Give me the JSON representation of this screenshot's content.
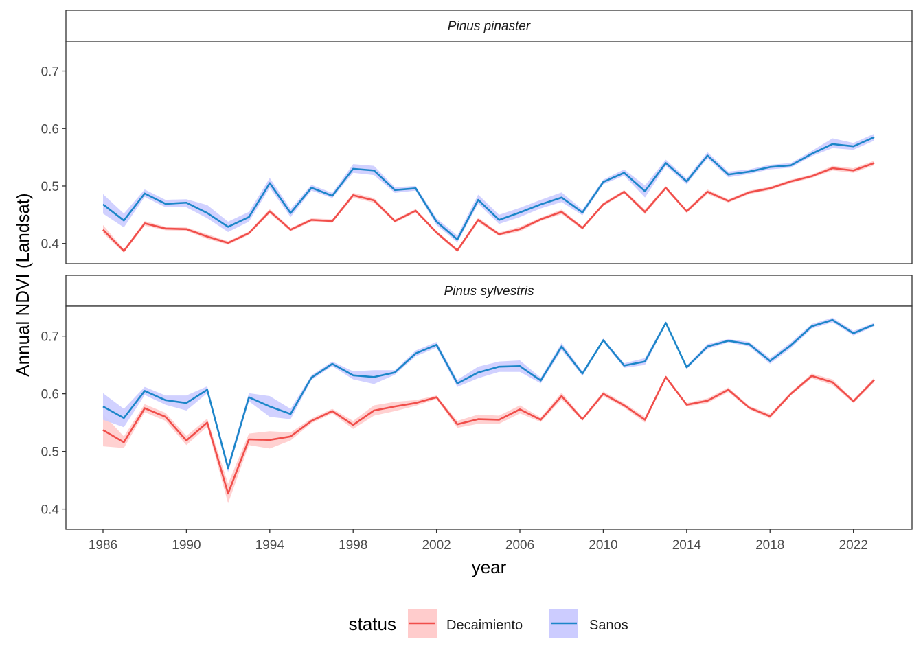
{
  "chart_data": {
    "type": "line",
    "facets": [
      "Pinus pinaster",
      "Pinus sylvestris"
    ],
    "x": [
      1986,
      1987,
      1988,
      1989,
      1990,
      1991,
      1992,
      1993,
      1994,
      1995,
      1996,
      1997,
      1998,
      1999,
      2000,
      2001,
      2002,
      2003,
      2004,
      2005,
      2006,
      2007,
      2008,
      2009,
      2010,
      2011,
      2012,
      2013,
      2014,
      2015,
      2016,
      2017,
      2018,
      2019,
      2020,
      2021,
      2022,
      2023
    ],
    "x_ticks": [
      "1986",
      "1990",
      "1994",
      "1998",
      "2002",
      "2006",
      "2010",
      "2014",
      "2018",
      "2022"
    ],
    "xlabel": "year",
    "ylabel": "Annual NDVI (Landsat)",
    "y_ticks": [
      "0.4",
      "0.5",
      "0.6",
      "0.7"
    ],
    "ylim": [
      [
        0.365,
        0.752
      ],
      [
        0.365,
        0.752
      ]
    ],
    "legend": {
      "title": "status",
      "position": "bottom",
      "items": [
        {
          "label": "Decaimiento",
          "line": "#F04E4A",
          "fill": "#FFCCCC"
        },
        {
          "label": "Sanos",
          "line": "#1C86C8",
          "fill": "#CCCCFF"
        }
      ]
    },
    "panels": [
      {
        "series": [
          {
            "name": "Decaimiento",
            "values": [
              0.424,
              0.387,
              0.435,
              0.426,
              0.425,
              0.412,
              0.401,
              0.418,
              0.456,
              0.424,
              0.441,
              0.439,
              0.484,
              0.475,
              0.439,
              0.457,
              0.419,
              0.388,
              0.441,
              0.416,
              0.425,
              0.442,
              0.455,
              0.427,
              0.468,
              0.49,
              0.455,
              0.497,
              0.456,
              0.49,
              0.474,
              0.489,
              0.496,
              0.508,
              0.517,
              0.531,
              0.527,
              0.54
            ],
            "lower": [
              0.418,
              0.384,
              0.431,
              0.423,
              0.422,
              0.408,
              0.398,
              0.415,
              0.452,
              0.421,
              0.438,
              0.436,
              0.48,
              0.471,
              0.436,
              0.454,
              0.416,
              0.385,
              0.437,
              0.413,
              0.421,
              0.439,
              0.451,
              0.424,
              0.465,
              0.487,
              0.451,
              0.494,
              0.453,
              0.486,
              0.471,
              0.486,
              0.493,
              0.505,
              0.514,
              0.527,
              0.523,
              0.536
            ],
            "upper": [
              0.432,
              0.39,
              0.439,
              0.429,
              0.428,
              0.416,
              0.404,
              0.421,
              0.46,
              0.427,
              0.444,
              0.442,
              0.488,
              0.479,
              0.442,
              0.46,
              0.422,
              0.391,
              0.445,
              0.419,
              0.429,
              0.445,
              0.459,
              0.43,
              0.471,
              0.493,
              0.459,
              0.5,
              0.459,
              0.494,
              0.477,
              0.492,
              0.499,
              0.511,
              0.52,
              0.535,
              0.531,
              0.544
            ]
          },
          {
            "name": "Sanos",
            "values": [
              0.468,
              0.44,
              0.487,
              0.469,
              0.471,
              0.453,
              0.429,
              0.446,
              0.505,
              0.453,
              0.497,
              0.483,
              0.53,
              0.527,
              0.493,
              0.496,
              0.438,
              0.407,
              0.476,
              0.441,
              0.454,
              0.468,
              0.48,
              0.454,
              0.507,
              0.523,
              0.491,
              0.54,
              0.508,
              0.553,
              0.52,
              0.525,
              0.533,
              0.536,
              0.556,
              0.573,
              0.569,
              0.585
            ],
            "lower": [
              0.452,
              0.428,
              0.481,
              0.463,
              0.463,
              0.444,
              0.42,
              0.438,
              0.497,
              0.446,
              0.492,
              0.479,
              0.523,
              0.519,
              0.488,
              0.492,
              0.432,
              0.402,
              0.469,
              0.434,
              0.446,
              0.461,
              0.472,
              0.449,
              0.503,
              0.518,
              0.48,
              0.535,
              0.503,
              0.548,
              0.515,
              0.521,
              0.529,
              0.532,
              0.552,
              0.566,
              0.563,
              0.579
            ],
            "upper": [
              0.486,
              0.452,
              0.494,
              0.476,
              0.477,
              0.467,
              0.438,
              0.455,
              0.514,
              0.46,
              0.502,
              0.488,
              0.538,
              0.535,
              0.498,
              0.5,
              0.444,
              0.414,
              0.485,
              0.45,
              0.462,
              0.476,
              0.489,
              0.459,
              0.511,
              0.529,
              0.501,
              0.546,
              0.513,
              0.559,
              0.525,
              0.529,
              0.537,
              0.54,
              0.561,
              0.583,
              0.575,
              0.591
            ]
          }
        ]
      },
      {
        "series": [
          {
            "name": "Decaimiento",
            "values": [
              0.537,
              0.516,
              0.575,
              0.56,
              0.519,
              0.55,
              0.427,
              0.521,
              0.52,
              0.526,
              0.553,
              0.57,
              0.546,
              0.571,
              0.578,
              0.584,
              0.594,
              0.547,
              0.556,
              0.555,
              0.573,
              0.555,
              0.596,
              0.556,
              0.6,
              0.58,
              0.555,
              0.629,
              0.581,
              0.588,
              0.607,
              0.576,
              0.561,
              0.6,
              0.631,
              0.62,
              0.587,
              0.624
            ],
            "lower": [
              0.509,
              0.506,
              0.568,
              0.553,
              0.511,
              0.543,
              0.41,
              0.511,
              0.505,
              0.519,
              0.549,
              0.566,
              0.539,
              0.562,
              0.57,
              0.579,
              0.591,
              0.541,
              0.548,
              0.548,
              0.566,
              0.551,
              0.59,
              0.553,
              0.596,
              0.576,
              0.55,
              0.626,
              0.578,
              0.584,
              0.603,
              0.573,
              0.557,
              0.597,
              0.627,
              0.615,
              0.584,
              0.62
            ],
            "upper": [
              0.565,
              0.526,
              0.582,
              0.567,
              0.527,
              0.557,
              0.444,
              0.531,
              0.535,
              0.533,
              0.557,
              0.574,
              0.553,
              0.58,
              0.586,
              0.589,
              0.597,
              0.553,
              0.564,
              0.562,
              0.58,
              0.559,
              0.602,
              0.559,
              0.604,
              0.584,
              0.56,
              0.632,
              0.584,
              0.592,
              0.611,
              0.579,
              0.565,
              0.603,
              0.635,
              0.625,
              0.59,
              0.628
            ]
          },
          {
            "name": "Sanos",
            "values": [
              0.578,
              0.558,
              0.605,
              0.589,
              0.584,
              0.607,
              0.471,
              0.594,
              0.578,
              0.565,
              0.628,
              0.652,
              0.632,
              0.629,
              0.637,
              0.67,
              0.685,
              0.618,
              0.637,
              0.647,
              0.648,
              0.623,
              0.682,
              0.635,
              0.693,
              0.649,
              0.656,
              0.723,
              0.646,
              0.682,
              0.692,
              0.686,
              0.657,
              0.684,
              0.717,
              0.728,
              0.705,
              0.72
            ],
            "lower": [
              0.555,
              0.542,
              0.598,
              0.581,
              0.571,
              0.601,
              0.464,
              0.587,
              0.56,
              0.556,
              0.624,
              0.648,
              0.625,
              0.617,
              0.633,
              0.665,
              0.68,
              0.612,
              0.627,
              0.638,
              0.638,
              0.618,
              0.676,
              0.631,
              0.69,
              0.645,
              0.65,
              0.72,
              0.643,
              0.678,
              0.689,
              0.682,
              0.652,
              0.679,
              0.713,
              0.724,
              0.701,
              0.717
            ],
            "upper": [
              0.601,
              0.574,
              0.612,
              0.597,
              0.597,
              0.613,
              0.478,
              0.601,
              0.596,
              0.574,
              0.632,
              0.656,
              0.639,
              0.641,
              0.641,
              0.675,
              0.69,
              0.624,
              0.647,
              0.656,
              0.658,
              0.628,
              0.688,
              0.639,
              0.696,
              0.653,
              0.662,
              0.726,
              0.649,
              0.686,
              0.695,
              0.69,
              0.662,
              0.689,
              0.721,
              0.732,
              0.709,
              0.723
            ]
          }
        ]
      }
    ]
  }
}
